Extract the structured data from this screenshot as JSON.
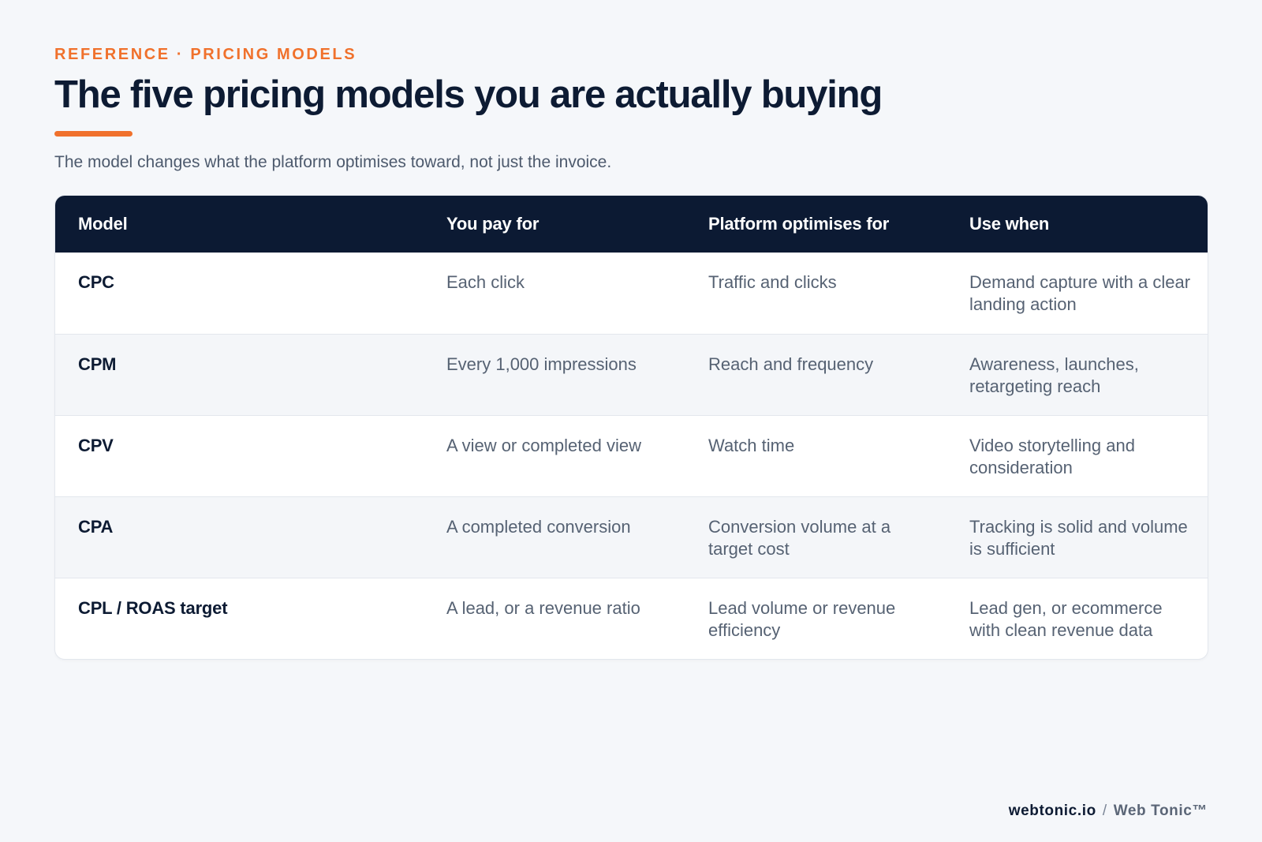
{
  "header": {
    "eyebrow": "REFERENCE · PRICING MODELS",
    "title": "The five pricing models you are actually buying",
    "subtitle": "The model changes what the platform optimises toward, not just the invoice."
  },
  "colors": {
    "accent": "#f0712c",
    "navy": "#0c1a33",
    "background": "#f5f7fa"
  },
  "table": {
    "columns": [
      "Model",
      "You pay for",
      "Platform optimises for",
      "Use when"
    ],
    "rows": [
      {
        "model": "CPC",
        "pay_for": "Each click",
        "optimises_for": "Traffic and clicks",
        "use_when": "Demand capture with a clear landing action"
      },
      {
        "model": "CPM",
        "pay_for": "Every 1,000 impressions",
        "optimises_for": "Reach and frequency",
        "use_when": "Awareness, launches, retargeting reach"
      },
      {
        "model": "CPV",
        "pay_for": "A view or completed view",
        "optimises_for": "Watch time",
        "use_when": "Video storytelling and consideration"
      },
      {
        "model": "CPA",
        "pay_for": "A completed conversion",
        "optimises_for": "Conversion volume at a target cost",
        "use_when": "Tracking is solid and volume is sufficient"
      },
      {
        "model": "CPL / ROAS target",
        "pay_for": "A lead, or a revenue ratio",
        "optimises_for": "Lead volume or revenue efficiency",
        "use_when": "Lead gen, or ecommerce with clean revenue data"
      }
    ]
  },
  "footer": {
    "domain": "webtonic.io",
    "separator": "/",
    "brand": "Web Tonic™"
  }
}
